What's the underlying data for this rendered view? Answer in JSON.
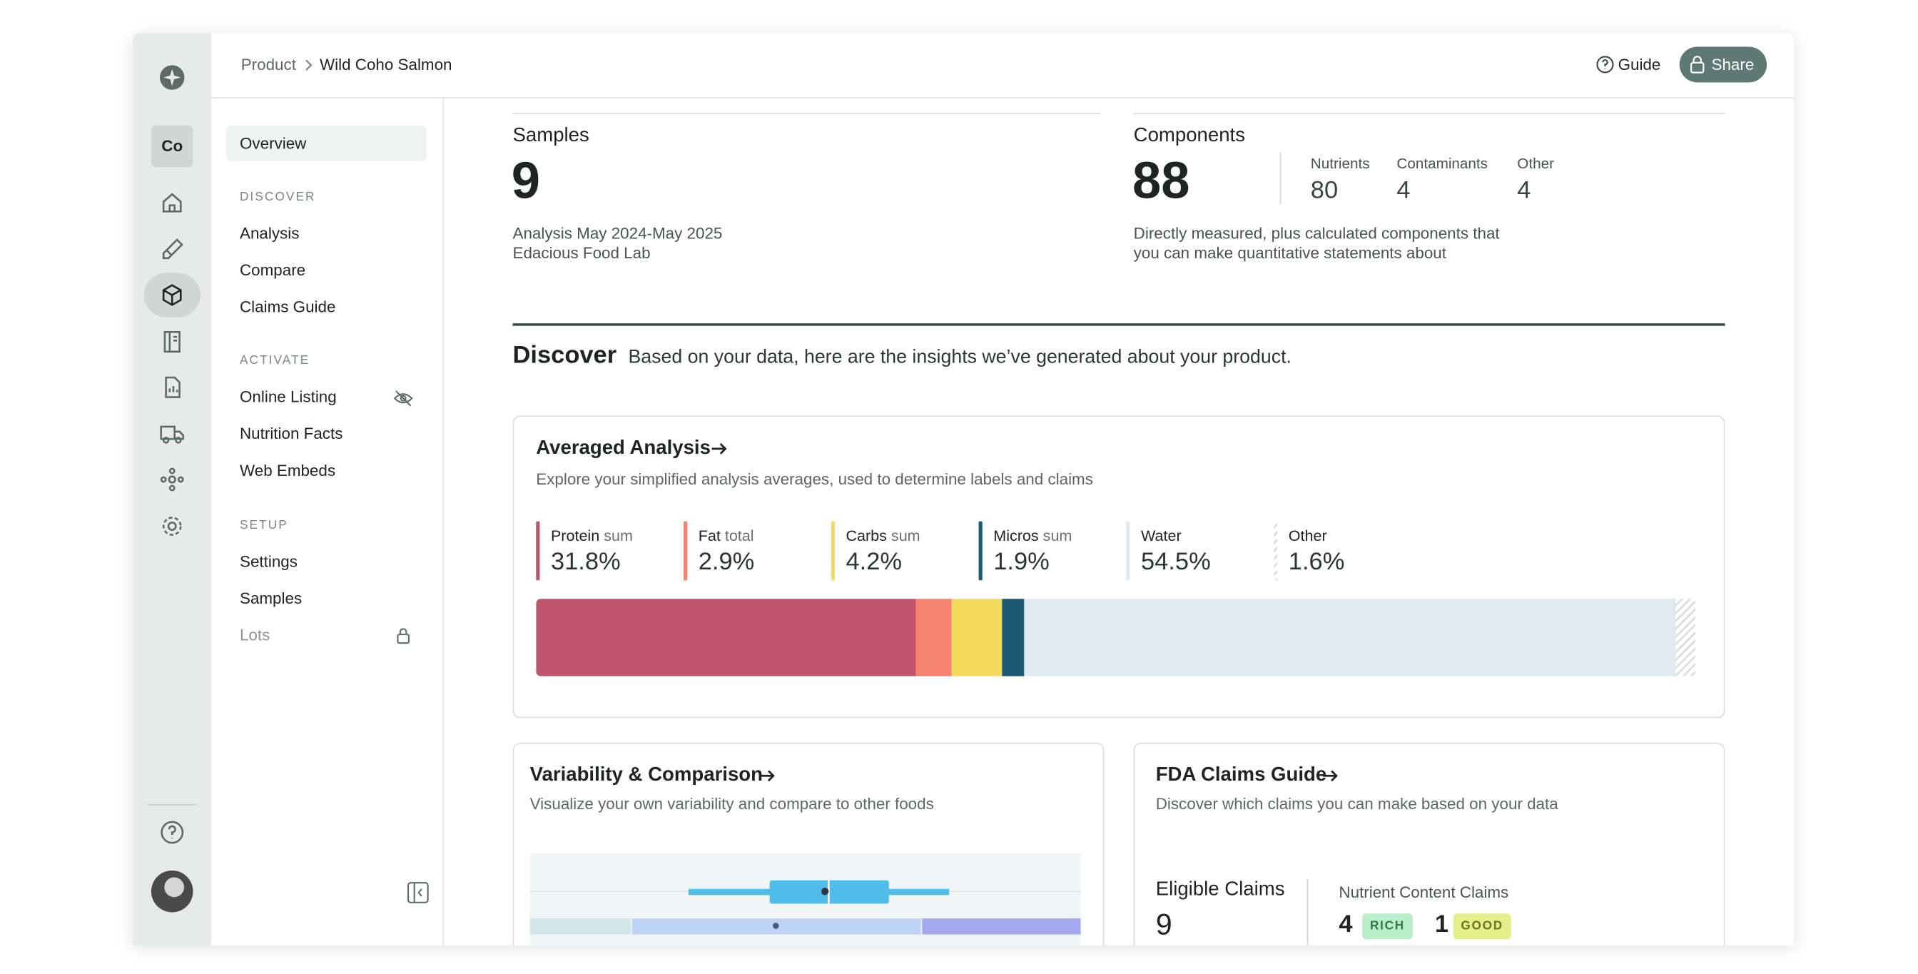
{
  "breadcrumb": {
    "parent": "Product",
    "current": "Wild Coho Salmon"
  },
  "header_actions": {
    "guide": "Guide",
    "share": "Share"
  },
  "workspace": "Co",
  "nav": {
    "overview": "Overview",
    "sections": [
      {
        "title": "DISCOVER",
        "items": [
          "Analysis",
          "Compare",
          "Claims Guide"
        ]
      },
      {
        "title": "ACTIVATE",
        "items": [
          "Online Listing",
          "Nutrition Facts",
          "Web Embeds"
        ]
      },
      {
        "title": "SETUP",
        "items": [
          "Settings",
          "Samples",
          "Lots"
        ]
      }
    ]
  },
  "summary": {
    "samples": {
      "label": "Samples",
      "value": 9,
      "lines": [
        "Analysis May 2024-May 2025",
        "Edacious Food Lab"
      ]
    },
    "components": {
      "label": "Components",
      "value": 88,
      "breakdown": [
        {
          "label": "Nutrients",
          "value": 80
        },
        {
          "label": "Contaminants",
          "value": 4
        },
        {
          "label": "Other",
          "value": 4
        }
      ],
      "note": [
        "Directly measured, plus calculated components that",
        "you can make quantitative statements about"
      ]
    }
  },
  "discover": {
    "title": "Discover",
    "subtitle": "Based on your data, here are the insights we’ve generated about your product."
  },
  "averaged_analysis": {
    "title": "Averaged Analysis",
    "description": "Explore your simplified analysis averages, used to determine labels and claims",
    "series": [
      {
        "name": "Protein",
        "qualifier": "sum",
        "color": "#c0546a"
      },
      {
        "name": "Fat",
        "qualifier": "total",
        "color": "#f4826f"
      },
      {
        "name": "Carbs",
        "qualifier": "sum",
        "color": "#f3da5a"
      },
      {
        "name": "Micros",
        "qualifier": "sum",
        "color": "#1b5a72"
      },
      {
        "name": "Water",
        "color": "#deeaf0"
      },
      {
        "name": "Other",
        "color": "hatch"
      }
    ],
    "values": [
      31.8,
      2.9,
      4.2,
      1.9,
      54.5,
      1.6
    ],
    "value_labels": [
      "31.8%",
      "2.9%",
      "4.2%",
      "1.9%",
      "54.5%",
      "1.6%"
    ]
  },
  "variability": {
    "title": "Variability & Comparison",
    "description": "Visualize your own variability and compare to other foods"
  },
  "fda": {
    "title": "FDA Claims Guide",
    "description": "Discover which claims you can make based on your data",
    "eligible_label": "Eligible Claims",
    "eligible_value": 9,
    "content_claims_label": "Nutrient Content Claims",
    "claims": [
      {
        "count": 4,
        "badge": "RICH"
      },
      {
        "count": 1,
        "badge": "GOOD"
      }
    ]
  }
}
